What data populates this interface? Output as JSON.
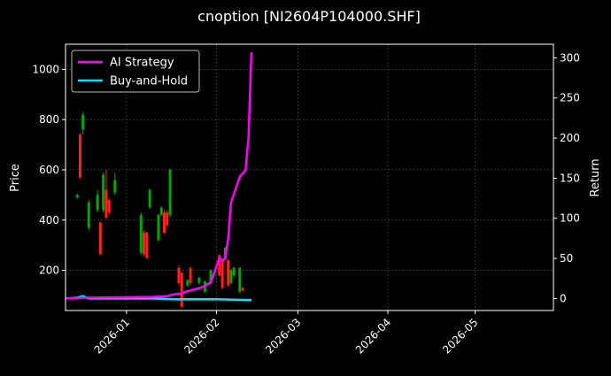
{
  "chart_data": {
    "type": "line",
    "title": "cnoption [NI2604P104000.SHF]",
    "ylabel_left": "Price",
    "ylabel_right": "Return",
    "xlim": [
      "2025-12-11",
      "2026-05-28"
    ],
    "ylim_left": [
      40,
      1100
    ],
    "ylim_right": [
      -15,
      317
    ],
    "x_ticks": [
      "2026-01",
      "2026-02",
      "2026-03",
      "2026-04",
      "2026-05"
    ],
    "y_ticks_left": [
      200,
      400,
      600,
      800,
      1000
    ],
    "y_ticks_right": [
      0,
      50,
      100,
      150,
      200,
      250,
      300
    ],
    "grid": true,
    "legend_position": "top-left",
    "colors": {
      "up": "#00aa00",
      "down": "#ff2020",
      "ai": "#ff00ff",
      "bh": "#00e5ff"
    },
    "legend": [
      {
        "label": "AI Strategy",
        "color": "#ff00ff"
      },
      {
        "label": "Buy-and-Hold",
        "color": "#00e5ff"
      }
    ],
    "candles": [
      {
        "date": "2025-12-15",
        "open": 490,
        "close": 500,
        "high": 505,
        "low": 485
      },
      {
        "date": "2025-12-16",
        "open": 740,
        "close": 570,
        "high": 745,
        "low": 565
      },
      {
        "date": "2025-12-17",
        "open": 760,
        "close": 820,
        "high": 830,
        "low": 740
      },
      {
        "date": "2025-12-19",
        "open": 370,
        "close": 470,
        "high": 480,
        "low": 360
      },
      {
        "date": "2025-12-22",
        "open": 440,
        "close": 500,
        "high": 520,
        "low": 430
      },
      {
        "date": "2025-12-23",
        "open": 390,
        "close": 265,
        "high": 395,
        "low": 260
      },
      {
        "date": "2025-12-24",
        "open": 440,
        "close": 580,
        "high": 590,
        "low": 430
      },
      {
        "date": "2025-12-25",
        "open": 520,
        "close": 410,
        "high": 600,
        "low": 405
      },
      {
        "date": "2025-12-26",
        "open": 480,
        "close": 430,
        "high": 490,
        "low": 420
      },
      {
        "date": "2025-12-28",
        "open": 510,
        "close": 560,
        "high": 590,
        "low": 500
      },
      {
        "date": "2026-01-06",
        "open": 270,
        "close": 420,
        "high": 430,
        "low": 260
      },
      {
        "date": "2026-01-07",
        "open": 350,
        "close": 265,
        "high": 360,
        "low": 255
      },
      {
        "date": "2026-01-08",
        "open": 350,
        "close": 250,
        "high": 355,
        "low": 245
      },
      {
        "date": "2026-01-09",
        "open": 450,
        "close": 520,
        "high": 525,
        "low": 445
      },
      {
        "date": "2026-01-12",
        "open": 320,
        "close": 420,
        "high": 425,
        "low": 315
      },
      {
        "date": "2026-01-13",
        "open": 420,
        "close": 450,
        "high": 455,
        "low": 415
      },
      {
        "date": "2026-01-14",
        "open": 430,
        "close": 350,
        "high": 440,
        "low": 345
      },
      {
        "date": "2026-01-15",
        "open": 430,
        "close": 380,
        "high": 440,
        "low": 375
      },
      {
        "date": "2026-01-16",
        "open": 420,
        "close": 600,
        "high": 605,
        "low": 410
      },
      {
        "date": "2026-01-19",
        "open": 210,
        "close": 150,
        "high": 220,
        "low": 140
      },
      {
        "date": "2026-01-20",
        "open": 190,
        "close": 55,
        "high": 195,
        "low": 50
      },
      {
        "date": "2026-01-22",
        "open": 140,
        "close": 160,
        "high": 165,
        "low": 135
      },
      {
        "date": "2026-01-23",
        "open": 210,
        "close": 150,
        "high": 215,
        "low": 140
      },
      {
        "date": "2026-01-26",
        "open": 150,
        "close": 170,
        "high": 175,
        "low": 145
      },
      {
        "date": "2026-01-28",
        "open": 115,
        "close": 155,
        "high": 160,
        "low": 110
      },
      {
        "date": "2026-01-30",
        "open": 150,
        "close": 200,
        "high": 205,
        "low": 145
      },
      {
        "date": "2026-02-02",
        "open": 260,
        "close": 180,
        "high": 265,
        "low": 175
      },
      {
        "date": "2026-02-03",
        "open": 240,
        "close": 130,
        "high": 245,
        "low": 125
      },
      {
        "date": "2026-02-04",
        "open": 250,
        "close": 290,
        "high": 295,
        "low": 245
      },
      {
        "date": "2026-02-05",
        "open": 240,
        "close": 140,
        "high": 245,
        "low": 135
      },
      {
        "date": "2026-02-06",
        "open": 150,
        "close": 200,
        "high": 205,
        "low": 145
      },
      {
        "date": "2026-02-07",
        "open": 180,
        "close": 210,
        "high": 215,
        "low": 175
      },
      {
        "date": "2026-02-09",
        "open": 115,
        "close": 210,
        "high": 215,
        "low": 110
      },
      {
        "date": "2026-02-10",
        "open": 130,
        "close": 120,
        "high": 135,
        "low": 115
      }
    ],
    "series": [
      {
        "name": "AI Strategy",
        "color": "#ff00ff",
        "x": [
          "2025-12-11",
          "2025-12-18",
          "2026-01-10",
          "2026-01-15",
          "2026-01-17",
          "2026-01-19",
          "2026-01-20",
          "2026-01-21",
          "2026-01-23",
          "2026-01-27",
          "2026-01-30",
          "2026-02-02",
          "2026-02-03",
          "2026-02-04",
          "2026-02-05",
          "2026-02-06",
          "2026-02-09",
          "2026-02-11",
          "2026-02-12",
          "2026-02-13"
        ],
        "y": [
          0,
          1,
          2,
          3,
          5,
          6,
          6,
          8,
          10,
          14,
          20,
          51,
          47,
          50,
          75,
          120,
          152,
          160,
          200,
          307
        ]
      },
      {
        "name": "Buy-and-Hold",
        "color": "#00e5ff",
        "x": [
          "2025-12-11",
          "2025-12-15",
          "2025-12-17",
          "2025-12-19",
          "2026-01-10",
          "2026-01-18",
          "2026-02-01",
          "2026-02-13"
        ],
        "y": [
          0,
          1,
          3,
          0,
          0,
          -1,
          -1,
          -2
        ]
      }
    ]
  }
}
